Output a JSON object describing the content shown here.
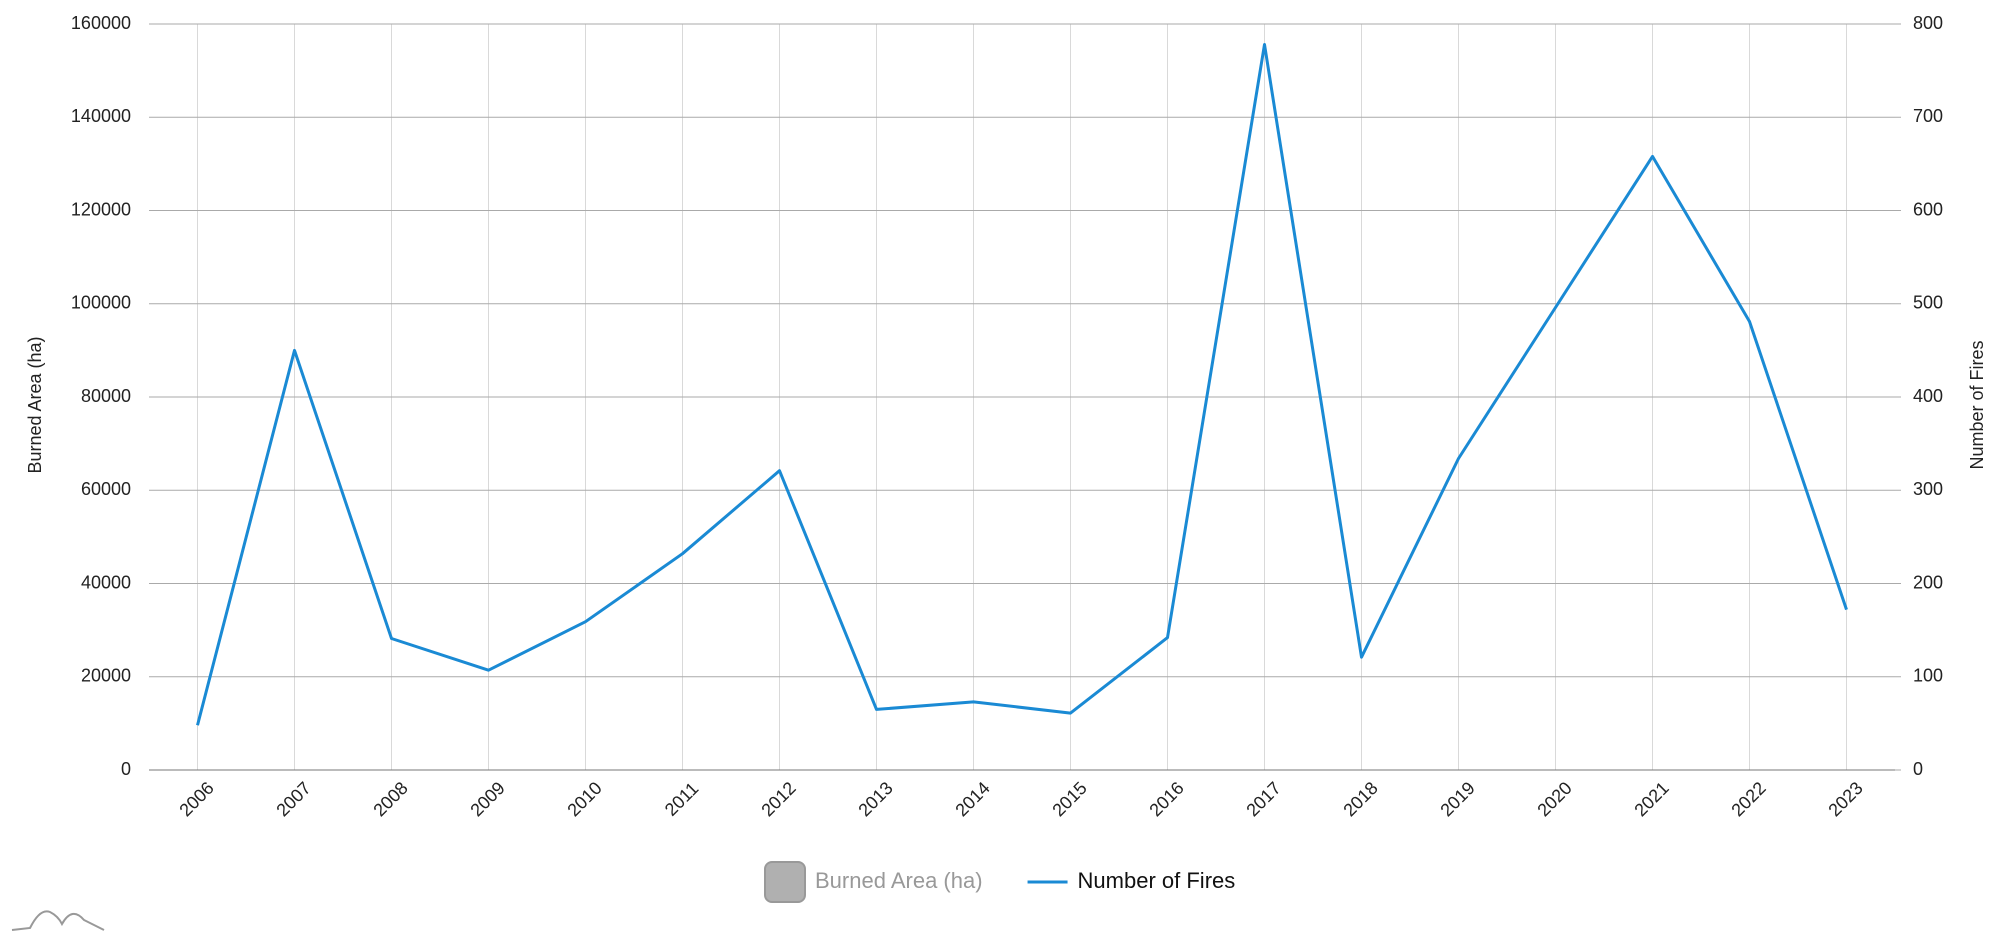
{
  "chart_data": {
    "type": "line",
    "categories": [
      "2006",
      "2007",
      "2008",
      "2009",
      "2010",
      "2011",
      "2012",
      "2013",
      "2014",
      "2015",
      "2016",
      "2017",
      "2018",
      "2019",
      "2020",
      "2021",
      "2022",
      "2023"
    ],
    "ylabel": "Burned Area (ha)",
    "y2label": "Number of Fires",
    "ylim": [
      0,
      160000
    ],
    "yticks": [
      0,
      20000,
      40000,
      60000,
      80000,
      100000,
      120000,
      140000,
      160000
    ],
    "y2lim": [
      0,
      800
    ],
    "y2ticks": [
      0,
      100,
      200,
      300,
      400,
      500,
      600,
      700,
      800
    ],
    "grid": true,
    "legend": "bottom",
    "series": [
      {
        "name": "Burned Area (ha)",
        "color": "#b0b0b0",
        "visible": false,
        "values": [
          null,
          null,
          null,
          null,
          null,
          null,
          null,
          null,
          null,
          null,
          null,
          null,
          null,
          null,
          null,
          null,
          null,
          null
        ]
      },
      {
        "name": "Number of Fires",
        "color": "#1a8ad4",
        "axis": "y2",
        "visible": true,
        "values": [
          48,
          450,
          141,
          107,
          159,
          232,
          321,
          65,
          73,
          61,
          142,
          778,
          121,
          334,
          496,
          658,
          481,
          172
        ]
      }
    ]
  }
}
